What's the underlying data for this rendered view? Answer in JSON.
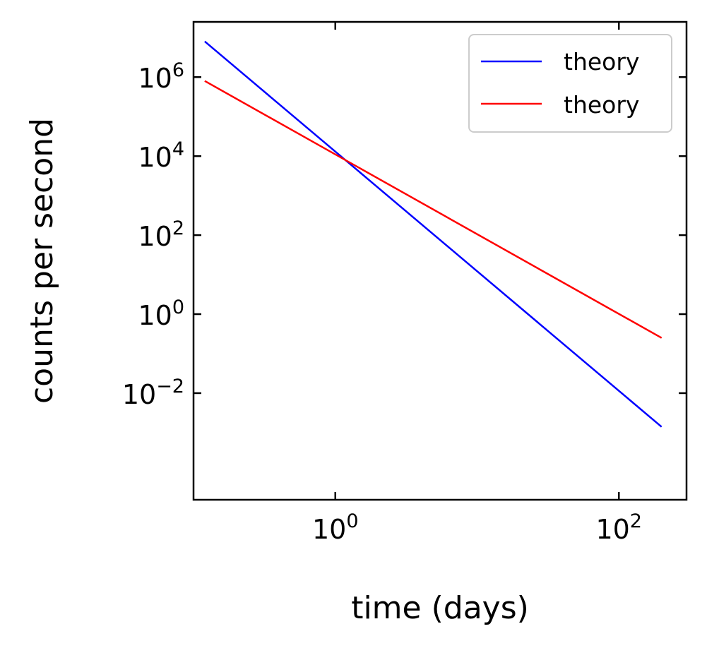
{
  "chart_data": {
    "type": "line",
    "title": "",
    "xlabel": "time (days)",
    "ylabel": "counts per second",
    "xscale": "log",
    "yscale": "log",
    "xlim": [
      0.1,
      300
    ],
    "ylim": [
      2e-05,
      25000000
    ],
    "grid": false,
    "legend_position": "top-right",
    "x_ticks": [
      {
        "value": 1,
        "base": "10",
        "exp": "0"
      },
      {
        "value": 100,
        "base": "10",
        "exp": "2"
      }
    ],
    "y_ticks": [
      {
        "value": 1000000,
        "base": "10",
        "exp": "6"
      },
      {
        "value": 10000,
        "base": "10",
        "exp": "4"
      },
      {
        "value": 100,
        "base": "10",
        "exp": "2"
      },
      {
        "value": 1,
        "base": "10",
        "exp": "0"
      },
      {
        "value": 0.01,
        "base": "10",
        "exp": "−2"
      }
    ],
    "series": [
      {
        "name": "theory",
        "color": "#0000ff",
        "x": [
          0.12,
          200
        ],
        "y": [
          8000000,
          0.0014
        ]
      },
      {
        "name": "theory",
        "color": "#ff0000",
        "x": [
          0.12,
          200
        ],
        "y": [
          800000,
          0.25
        ]
      }
    ]
  }
}
